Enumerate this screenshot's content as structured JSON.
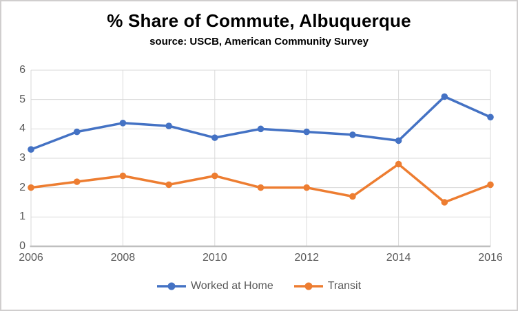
{
  "chart": {
    "title": "% Share of Commute, Albuquerque",
    "subtitle": "source: USCB, American Community Survey"
  },
  "chart_data": {
    "type": "line",
    "title": "% Share of Commute, Albuquerque",
    "subtitle": "source: USCB, American Community Survey",
    "x": [
      2006,
      2007,
      2008,
      2009,
      2010,
      2011,
      2012,
      2013,
      2014,
      2015,
      2016
    ],
    "series": [
      {
        "name": "Worked at Home",
        "color": "#4472C4",
        "values": [
          3.3,
          3.9,
          4.2,
          4.1,
          3.7,
          4.0,
          3.9,
          3.8,
          3.6,
          5.1,
          4.4
        ]
      },
      {
        "name": "Transit",
        "color": "#ED7D31",
        "values": [
          2.0,
          2.2,
          2.4,
          2.1,
          2.4,
          2.0,
          2.0,
          1.7,
          2.8,
          1.5,
          2.1
        ]
      }
    ],
    "xlim": [
      2006,
      2016
    ],
    "ylim": [
      0,
      6
    ],
    "x_ticks": [
      "2006",
      "2008",
      "2010",
      "2012",
      "2014",
      "2016"
    ],
    "y_ticks": [
      "0",
      "1",
      "2",
      "3",
      "4",
      "5",
      "6"
    ],
    "grid": true,
    "legend_position": "bottom",
    "colors": {
      "grid_line": "#D9D9D9",
      "axis_line": "#BFBFBF",
      "tick_label": "#595959",
      "legend_text": "#595959",
      "title_text": "#000000"
    }
  }
}
